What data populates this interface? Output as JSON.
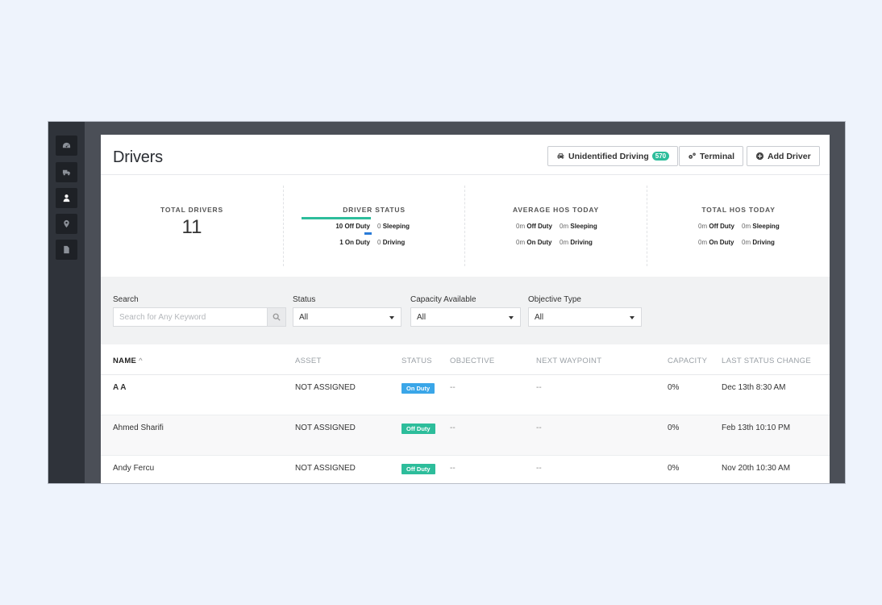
{
  "sidebar": {
    "items": [
      {
        "icon": "dashboard-icon",
        "active": false
      },
      {
        "icon": "truck-icon",
        "active": false
      },
      {
        "icon": "user-icon",
        "active": true
      },
      {
        "icon": "map-pin-icon",
        "active": false
      },
      {
        "icon": "document-icon",
        "active": false
      }
    ]
  },
  "header": {
    "title": "Drivers",
    "unidentified_label": "Unidentified Driving",
    "unidentified_count": "570",
    "terminal_label": "Terminal",
    "add_driver_label": "Add Driver"
  },
  "stats": {
    "total_drivers": {
      "title": "TOTAL DRIVERS",
      "value": "11"
    },
    "driver_status": {
      "title": "DRIVER STATUS",
      "off_duty_count": "10 Off Duty",
      "sleeping_count": "0",
      "sleeping_label": "Sleeping",
      "on_duty_count": "1 On Duty",
      "driving_count": "0",
      "driving_label": "Driving",
      "off_duty_fraction": 0.91,
      "on_duty_fraction": 0.09
    },
    "average_hos": {
      "title": "AVERAGE HOS TODAY",
      "off_duty_value": "0m",
      "off_duty_label": "Off Duty",
      "sleeping_value": "0m",
      "sleeping_label": "Sleeping",
      "on_duty_value": "0m",
      "on_duty_label": "On Duty",
      "driving_value": "0m",
      "driving_label": "Driving"
    },
    "total_hos": {
      "title": "TOTAL HOS TODAY",
      "off_duty_value": "0m",
      "off_duty_label": "Off Duty",
      "sleeping_value": "0m",
      "sleeping_label": "Sleeping",
      "on_duty_value": "0m",
      "on_duty_label": "On Duty",
      "driving_value": "0m",
      "driving_label": "Driving"
    }
  },
  "filters": {
    "search": {
      "label": "Search",
      "placeholder": "Search for Any Keyword"
    },
    "status": {
      "label": "Status",
      "value": "All"
    },
    "capacity": {
      "label": "Capacity Available",
      "value": "All"
    },
    "objective": {
      "label": "Objective Type",
      "value": "All"
    }
  },
  "table": {
    "columns": [
      "NAME",
      "ASSET",
      "STATUS",
      "OBJECTIVE",
      "NEXT WAYPOINT",
      "CAPACITY",
      "LAST STATUS CHANGE"
    ],
    "sort_indicator": "^",
    "rows": [
      {
        "name": "A A",
        "asset": "NOT ASSIGNED",
        "status": "On Duty",
        "objective": "--",
        "next_waypoint": "--",
        "capacity": "0%",
        "last_change": "Dec 13th 8:30 AM"
      },
      {
        "name": "Ahmed Sharifi",
        "asset": "NOT ASSIGNED",
        "status": "Off Duty",
        "objective": "--",
        "next_waypoint": "--",
        "capacity": "0%",
        "last_change": "Feb 13th 10:10 PM"
      },
      {
        "name": "Andy Fercu",
        "asset": "NOT ASSIGNED",
        "status": "Off Duty",
        "objective": "--",
        "next_waypoint": "--",
        "capacity": "0%",
        "last_change": "Nov 20th 10:30 AM"
      }
    ]
  },
  "colors": {
    "on_duty": "#3aa6e8",
    "off_duty": "#2dbd9b",
    "accent": "#2dbd9b"
  }
}
